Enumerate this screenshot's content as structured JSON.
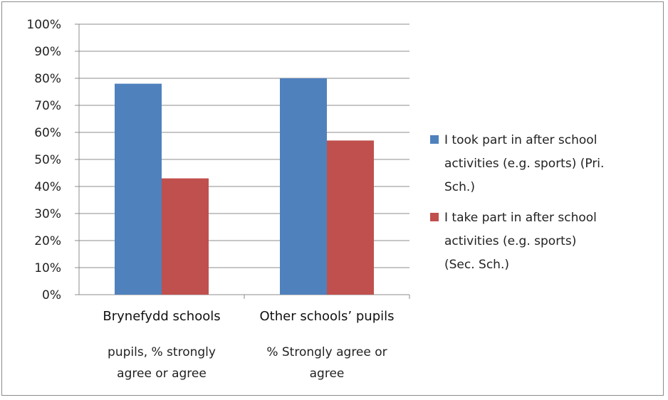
{
  "chart_data": {
    "type": "bar",
    "categories": [
      {
        "name": "Brynefydd schools",
        "subtitle_lines": [
          "pupils, % strongly",
          "agree or agree"
        ]
      },
      {
        "name": "Other schools’ pupils",
        "subtitle_lines": [
          "% Strongly agree or",
          "agree"
        ]
      }
    ],
    "series": [
      {
        "name_lines": [
          "I took part in after school",
          "activities (e.g. sports) (Pri.",
          "Sch.)"
        ],
        "color": "#4f81bd",
        "values": [
          78,
          80
        ]
      },
      {
        "name_lines": [
          "I take part in after school",
          "activities (e.g. sports)",
          "(Sec. Sch.)"
        ],
        "color": "#c0504d",
        "values": [
          43,
          57
        ]
      }
    ],
    "ylim": [
      0,
      100
    ],
    "yticks": [
      0,
      10,
      20,
      30,
      40,
      50,
      60,
      70,
      80,
      90,
      100
    ],
    "ytick_suffix": "%",
    "grid": true,
    "legend_position": "right"
  }
}
